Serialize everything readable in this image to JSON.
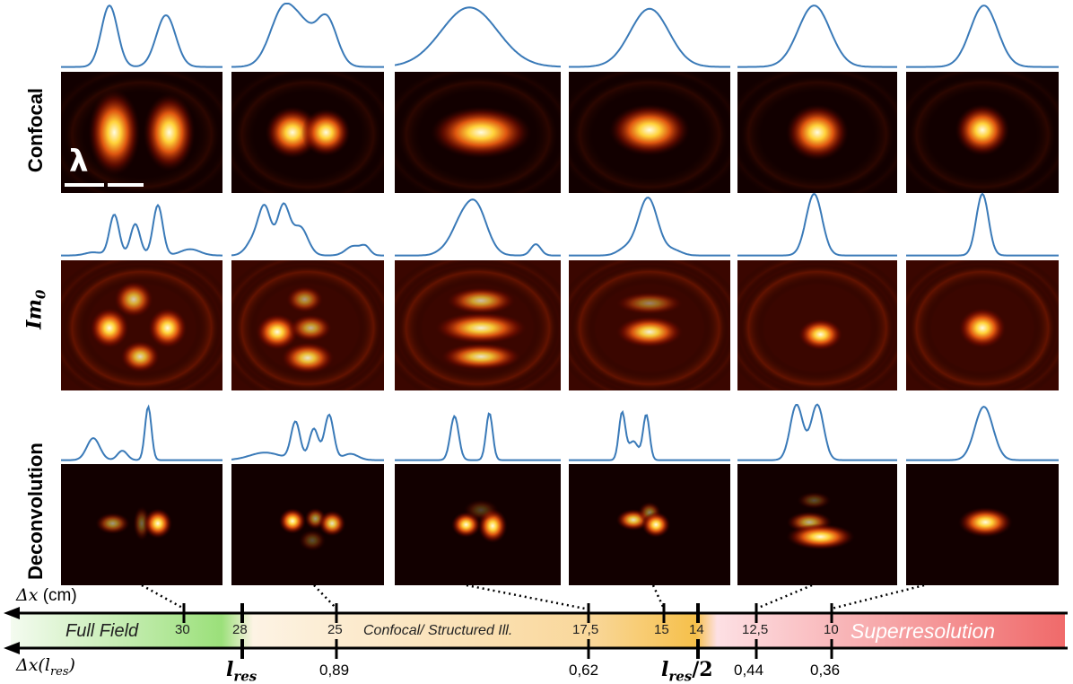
{
  "row_labels": {
    "confocal": "Confocal",
    "im0": "Im",
    "im0_sub": "0",
    "deconvolution": "Deconvolution"
  },
  "scale_bar_label": "λ",
  "axis": {
    "top_label": "Δx",
    "top_unit": "(cm)",
    "bottom_label": "Δx(l",
    "bottom_sub": "res",
    "bottom_close": ")",
    "top_ticks": [
      "30",
      "28",
      "25",
      "17,5",
      "15",
      "14",
      "12,5",
      "10"
    ],
    "bottom_ticks": [
      "0,89",
      "0,62",
      "0,44",
      "0,36"
    ],
    "lres_symbol": "l",
    "lres_sub": "res",
    "lres_half_suffix": "/2",
    "regions": {
      "full_field": "Full Field",
      "confocal": "Confocal/ Structured Ill.",
      "super": "Superresolution"
    }
  },
  "colors": {
    "profile_line": "#3a7ab8",
    "green": "#9be07a",
    "yellow": "#f6c04a",
    "red": "#f06a6a",
    "panel_bg": "#120000"
  }
}
